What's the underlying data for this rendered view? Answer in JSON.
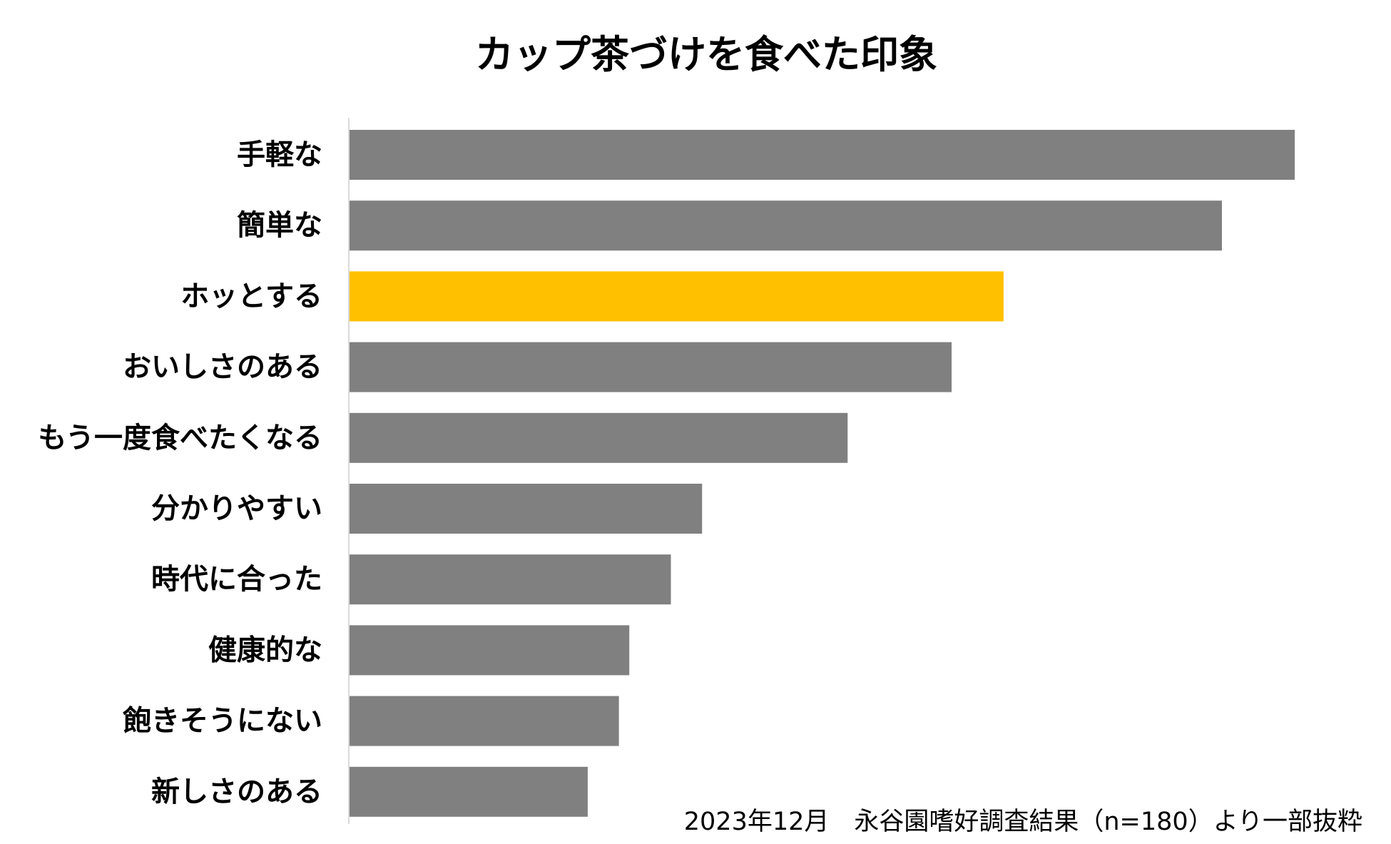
{
  "chart_data": {
    "type": "bar",
    "orientation": "horizontal",
    "title": "カップ茶づけを食べた印象",
    "categories": [
      "手軽な",
      "簡単な",
      "ホッとする",
      "おいしさのある",
      "もう一度食べたくなる",
      "分かりやすい",
      "時代に合った",
      "健康的な",
      "飽きそうにない",
      "新しさのある"
    ],
    "values": [
      100,
      92.3,
      69.2,
      63.7,
      52.7,
      37.3,
      34.0,
      29.6,
      28.5,
      25.2
    ],
    "highlight_index": 2,
    "xlim": [
      0,
      100
    ],
    "xlabel": "",
    "ylabel": "",
    "grid": false,
    "legend": false,
    "source_note": "2023年12月　永谷園嗜好調査結果（n=180）より一部抜粋"
  },
  "colors": {
    "bar": "#808080",
    "highlight": "#FFC000",
    "axis": "#D9D9D9",
    "text": "#000000"
  }
}
